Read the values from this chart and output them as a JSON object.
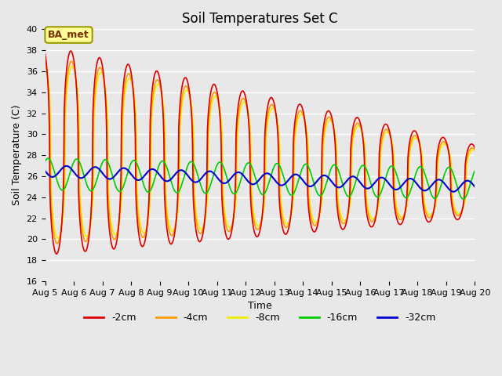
{
  "title": "Soil Temperatures Set C",
  "xlabel": "Time",
  "ylabel": "Soil Temperature (C)",
  "ylim": [
    16,
    40
  ],
  "yticks": [
    16,
    18,
    20,
    22,
    24,
    26,
    28,
    30,
    32,
    34,
    36,
    38,
    40
  ],
  "x_labels": [
    "Aug 5",
    "Aug 6",
    "Aug 7",
    "Aug 8",
    "Aug 9",
    "Aug 10",
    "Aug 11",
    "Aug 12",
    "Aug 13",
    "Aug 14",
    "Aug 15",
    "Aug 16",
    "Aug 17",
    "Aug 18",
    "Aug 19",
    "Aug 20"
  ],
  "series": {
    "-2cm": {
      "color": "#dd0000",
      "lw": 1.2
    },
    "-4cm": {
      "color": "#ff9900",
      "lw": 1.2
    },
    "-8cm": {
      "color": "#eeee00",
      "lw": 1.2
    },
    "-16cm": {
      "color": "#00cc00",
      "lw": 1.2
    },
    "-32cm": {
      "color": "#0000cc",
      "lw": 1.5
    }
  },
  "legend_colors": [
    "#dd0000",
    "#ff9900",
    "#eeee00",
    "#00cc00",
    "#0000cc"
  ],
  "legend_labels": [
    "-2cm",
    "-4cm",
    "-8cm",
    "-16cm",
    "-32cm"
  ],
  "background_color": "#e8e8e8",
  "plot_bg": "#e8e8e8",
  "annotation_text": "BA_met",
  "annotation_box_color": "#ffff99",
  "annotation_border_color": "#999900",
  "title_fontsize": 12,
  "label_fontsize": 9,
  "tick_fontsize": 8
}
